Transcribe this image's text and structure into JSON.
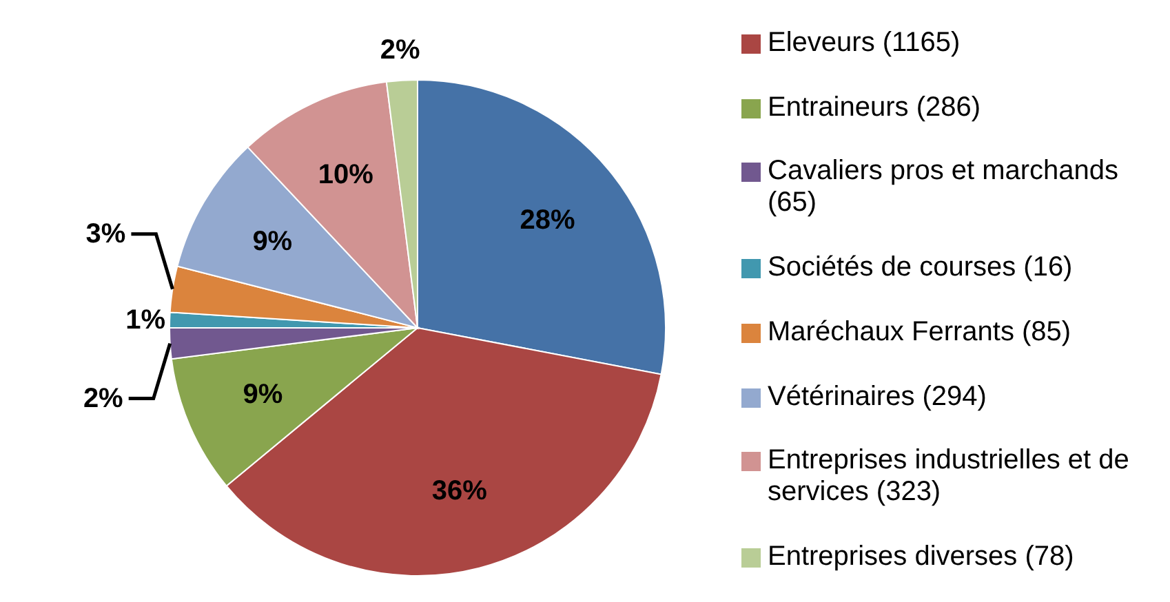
{
  "chart_data": {
    "type": "pie",
    "categories": [
      null,
      "Eleveurs (1165)",
      "Entraineurs (286)",
      "Cavaliers pros et marchands (65)",
      "Sociétés de courses (16)",
      "Maréchaux Ferrants (85)",
      "Vétérinaires (294)",
      "Entreprises industrielles et de services (323)",
      "Entreprises diverses (78)"
    ],
    "values": [
      28,
      36,
      9,
      2,
      1,
      3,
      9,
      10,
      2
    ],
    "value_labels": [
      "28%",
      "36%",
      "9%",
      "2%",
      "1%",
      "3%",
      "9%",
      "10%",
      "2%"
    ],
    "colors": [
      "#4572a7",
      "#aa4643",
      "#89a54e",
      "#71588f",
      "#4198af",
      "#db843d",
      "#93a9cf",
      "#d19392",
      "#b9cd96"
    ],
    "legend": "right"
  }
}
